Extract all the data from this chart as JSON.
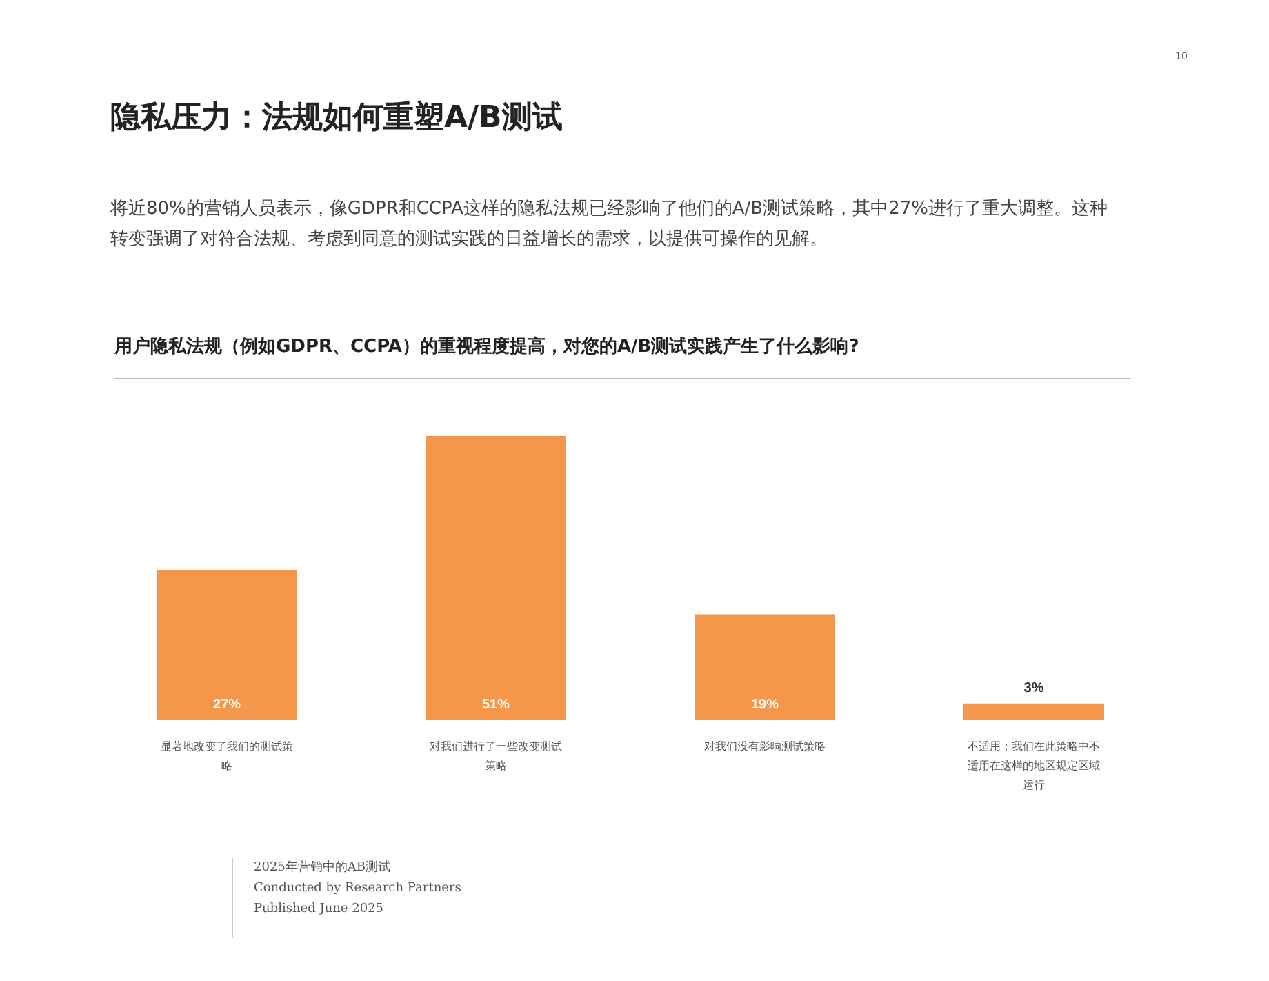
{
  "chart_data": {
    "type": "bar",
    "title": "隐私压力：法规如何重塑A/B测试",
    "subtitle": "将近80%的营销人员表示，像GDPR和CCPA这样的隐私法规已经影响了他们的A/B测试策略，其中27%进行了重大调整。这种转变强调了对符合法规、考虑到同意的测试实践的日益增长的需求，以提供可操作的见解。",
    "categories": [
      "显著地改变了我们的测试策略",
      "对我们进行了一些改变测试策略",
      "对我们没有影响测试策略",
      "不适用；我们在此策略中不适用在这样的地区规定区域运行"
    ],
    "values": [
      27,
      51,
      19,
      3
    ],
    "color": "#f5974a",
    "value_labels": [
      "27%",
      "51%",
      "19%",
      "3%"
    ],
    "annotations": [
      "用户隐私法规（例如GDPR、CCPA）的重视程度提高，对您的A/B测试实践产生了什么影响?",
      "2025年营销中的AB测试",
      "Conducted by Research Partners",
      "Published June 2025",
      "10"
    ]
  }
}
